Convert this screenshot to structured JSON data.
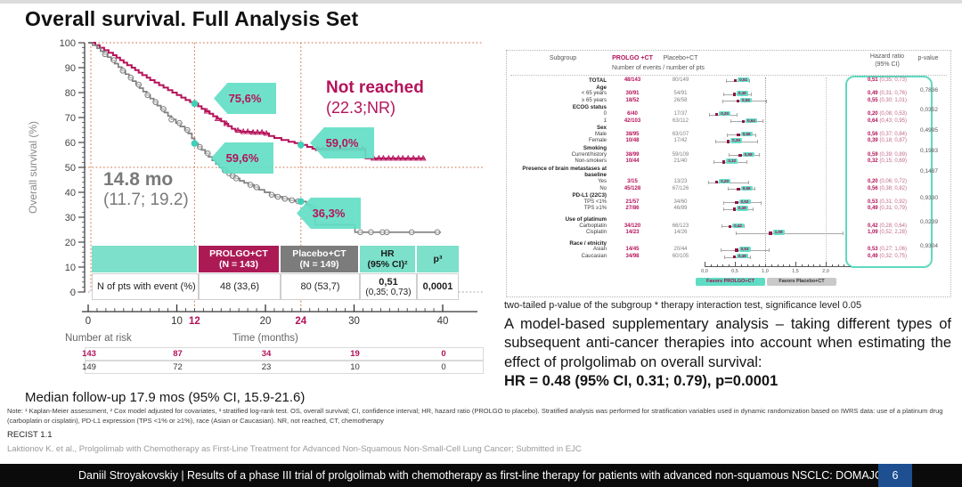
{
  "slide": {
    "title": "Overall survival. Full Analysis Set",
    "median_followup": "Median follow-up 17.9 mos (95% CI, 15.9-21.6)",
    "note": "Note: ¹ Kaplan-Meier assessment, ² Cox model adjusted for covariates, ³ stratified log-rank test. OS, overall survival; CI, confidence interval; HR, hazard ratio (PROLGO to placebo). Stratified analysis was performed for stratification variables used in dynamic randomization based on IWRS data: use of a platinum drug (carboplatin or cisplatin), PD-L1 expression (TPS <1% or ≥1%), race (Asian or Caucasian). NR, not reached, CT, chemotherapy",
    "recist": "RECIST 1.1",
    "source": "Laktionov K. et al., Prolgolimab with Chemotherapy as First-Line Treatment for Advanced Non-Squamous Non-Small-Cell Lung Cancer; Submitted in EJC",
    "footer": "Daniil Stroyakovskiy | Results of a phase III trial of prolgolimab with chemotherapy as first-line therapy for patients with advanced non-squamous NSCLC: DOMAJOR",
    "page_number": "6"
  },
  "km": {
    "ylabel": "Overall survival (%)",
    "xlabel": "Time (months)",
    "number_at_risk_label": "Number at risk",
    "annotations": {
      "prolgo_median": "Not reached",
      "prolgo_median_ci": "(22.3;NR)",
      "placebo_median": "14.8 mo",
      "placebo_median_ci": "(11.7; 19.2)",
      "flag_12_prolgo": "75,6%",
      "flag_12_placebo": "59,6%",
      "flag_24_prolgo": "59,0%",
      "flag_24_placebo": "36,3%"
    },
    "table": {
      "h0": "",
      "h1": "PROLGO+CT\n(N = 143)",
      "h2": "Placebo+CT\n(N = 149)",
      "h3": "HR\n(95% CI)²",
      "h4": "p³",
      "row_label": "N of pts with event (%)",
      "v1": "48 (33,6)",
      "v2": "80 (53,7)",
      "hr_value": "0,51",
      "hr_ci": "(0,35; 0,73)",
      "p": "0,0001"
    },
    "risk": {
      "prolgo": [
        "143",
        "87",
        "34",
        "19",
        "0"
      ],
      "placebo": [
        "149",
        "72",
        "23",
        "10",
        "0"
      ]
    }
  },
  "forest": {
    "headers": {
      "subgroup": "Subgroup",
      "prolgo": "PROLGO +CT",
      "placebo": "Placebo+CT",
      "events": "Number of events / number of pts",
      "hazard": "Hazard ratio\n(95% CI)",
      "pvalue": "p-value"
    },
    "legend_prolgo": "Favors PROLGO+CT",
    "legend_placebo": "Favors Placebo+CT",
    "footnote": "two-tailed p-value of the subgroup * therapy interaction test, significance level 0.05"
  },
  "analysis": {
    "text": "A model-based supplementary analysis – taking different types of subsequent anti-cancer therapies into account when estimating the effect of prolgolimab on overall survival:",
    "hr_line": "HR = 0.48 (95% CI, 0.31; 0.79), p=0.0001"
  },
  "theme": {
    "crimson": "#B5125A",
    "grey": "#7E7E7E",
    "teal": "#5FDCC3",
    "table_teal": "#7CE0CA",
    "ref_orange": "#CC6B3B",
    "footer_blue": "#1D4F91"
  },
  "chart_data": [
    {
      "type": "line",
      "title": "Kaplan-Meier overall survival, Full Analysis Set",
      "xlabel": "Time (months)",
      "ylabel": "Overall survival (%)",
      "xlim": [
        0,
        40
      ],
      "ylim": [
        0,
        100
      ],
      "xticks": [
        0,
        10,
        20,
        30,
        40
      ],
      "xticks_highlight": [
        12,
        24
      ],
      "ytick_step": 10,
      "risk_times": [
        0,
        10,
        20,
        30,
        40
      ],
      "series": [
        {
          "name": "PROLGO+CT",
          "color": "#B5125A",
          "marker": "triangle",
          "median_text": "Not reached (22.3;NR)",
          "points": [
            [
              0,
              100
            ],
            [
              0.8,
              99
            ],
            [
              1.3,
              98
            ],
            [
              1.8,
              97
            ],
            [
              2.3,
              96
            ],
            [
              2.8,
              95
            ],
            [
              3.2,
              94
            ],
            [
              3.6,
              93
            ],
            [
              4,
              92
            ],
            [
              4.4,
              91
            ],
            [
              4.9,
              90
            ],
            [
              5.3,
              89
            ],
            [
              5.7,
              88
            ],
            [
              6.1,
              87
            ],
            [
              6.6,
              86
            ],
            [
              7,
              85
            ],
            [
              7.5,
              84
            ],
            [
              8,
              83
            ],
            [
              8.5,
              82
            ],
            [
              9,
              81
            ],
            [
              9.5,
              80
            ],
            [
              10,
              79
            ],
            [
              10.5,
              78
            ],
            [
              11,
              77
            ],
            [
              11.5,
              76.2
            ],
            [
              12,
              75.6
            ],
            [
              12.4,
              74.5
            ],
            [
              12.8,
              73.5
            ],
            [
              13.2,
              72.5
            ],
            [
              13.7,
              71.5
            ],
            [
              14.1,
              70.5
            ],
            [
              14.5,
              69.5
            ],
            [
              15,
              68.5
            ],
            [
              15.4,
              67.5
            ],
            [
              15.8,
              66.5
            ],
            [
              16.2,
              65.5
            ],
            [
              16.6,
              64.8
            ],
            [
              17.2,
              64.3
            ],
            [
              18.5,
              64
            ],
            [
              19.8,
              63.6
            ],
            [
              20.4,
              62.6
            ],
            [
              21,
              61.8
            ],
            [
              21.8,
              61
            ],
            [
              22.6,
              60.3
            ],
            [
              23.3,
              59.7
            ],
            [
              24,
              59
            ],
            [
              24.7,
              58.2
            ],
            [
              25.3,
              57.5
            ],
            [
              31.3,
              53.6
            ],
            [
              38,
              53.6
            ]
          ],
          "censor_t": [
            13.4,
            14.6,
            15.6,
            16.9,
            17.5,
            18,
            18.6,
            19.1,
            19.6,
            20.1,
            25.9,
            26.5,
            27.2,
            27.8,
            28.4,
            29.1,
            29.7,
            30.4,
            31,
            32.2,
            32.8,
            33.3,
            33.9,
            34.4,
            35,
            35.5,
            36.1,
            36.7,
            37.3,
            37.8
          ]
        },
        {
          "name": "Placebo+CT",
          "color": "#7E7E7E",
          "marker": "circle",
          "median_text": "14.8 mo (11.7; 19.2)",
          "points": [
            [
              0,
              100
            ],
            [
              0.5,
              99
            ],
            [
              1,
              97.8
            ],
            [
              1.4,
              96.6
            ],
            [
              1.8,
              95.4
            ],
            [
              2.2,
              94.2
            ],
            [
              2.6,
              93
            ],
            [
              3,
              91.6
            ],
            [
              3.4,
              90.2
            ],
            [
              3.8,
              88.8
            ],
            [
              4.2,
              87.4
            ],
            [
              4.6,
              86
            ],
            [
              5,
              84.6
            ],
            [
              5.4,
              83.2
            ],
            [
              5.8,
              81.8
            ],
            [
              6.2,
              80.4
            ],
            [
              6.6,
              79
            ],
            [
              7,
              77.6
            ],
            [
              7.4,
              76.2
            ],
            [
              7.8,
              74.8
            ],
            [
              8.2,
              73.4
            ],
            [
              8.6,
              72
            ],
            [
              9,
              70.6
            ],
            [
              9.4,
              69.2
            ],
            [
              9.9,
              67.8
            ],
            [
              10.4,
              66.4
            ],
            [
              10.9,
              65
            ],
            [
              11.3,
              63.6
            ],
            [
              11.7,
              61.6
            ],
            [
              12,
              59.6
            ],
            [
              12.4,
              58.2
            ],
            [
              12.8,
              57
            ],
            [
              13.2,
              55.6
            ],
            [
              13.6,
              54.2
            ],
            [
              14,
              52.8
            ],
            [
              14.4,
              51.4
            ],
            [
              14.8,
              50
            ],
            [
              15.2,
              48.8
            ],
            [
              15.7,
              47.6
            ],
            [
              16.1,
              46.6
            ],
            [
              16.6,
              45.6
            ],
            [
              17.1,
              44.6
            ],
            [
              17.6,
              43.8
            ],
            [
              18.1,
              43
            ],
            [
              18.7,
              42
            ],
            [
              19.3,
              41
            ],
            [
              19.9,
              40
            ],
            [
              20.5,
              39
            ],
            [
              21.1,
              38.2
            ],
            [
              21.9,
              37.4
            ],
            [
              22.7,
              36.8
            ],
            [
              23.4,
              36.4
            ],
            [
              24,
              36.3
            ],
            [
              24.6,
              35
            ],
            [
              25.1,
              33.8
            ],
            [
              25.6,
              27
            ],
            [
              29.6,
              27
            ],
            [
              30.1,
              24
            ],
            [
              39.8,
              24
            ]
          ],
          "censor_t": [
            1.9,
            2.9,
            3.9,
            4.8,
            5.7,
            6.7,
            7.6,
            8.5,
            9.4,
            10.3,
            11.2,
            12.6,
            13.5,
            15.4,
            15.9,
            16.3,
            16.7,
            18.3,
            19,
            20.7,
            21.4,
            22.2,
            23,
            23.7,
            25.3,
            30.7,
            31.9,
            33.2,
            33.7,
            36.5,
            39.4
          ]
        }
      ],
      "milestones": [
        {
          "series": 0,
          "t": 12,
          "s": 75.6
        },
        {
          "series": 0,
          "t": 24,
          "s": 59.0
        },
        {
          "series": 1,
          "t": 12,
          "s": 59.6
        },
        {
          "series": 1,
          "t": 24,
          "s": 36.3
        }
      ]
    },
    {
      "type": "forest",
      "axis": {
        "min": 0,
        "max": 2.3,
        "ticks": [
          0,
          0.5,
          1,
          1.5,
          2
        ],
        "tick_labels": [
          "0,0",
          "0,5",
          "1,0",
          "1,5",
          "2,0"
        ],
        "ref": 1
      },
      "p_values": {
        "Age": "0,7836",
        "ECOG status": "0,0352",
        "Sex": "0,4995",
        "Smoking": "0,1983",
        "Presence of brain metastases at baseline": "0,1487",
        "PD-L1 (22C3)": "0,9330",
        "Use of platinum": "0,0239",
        "Race / etnicity": "0,9304"
      },
      "rows": [
        {
          "label": "TOTAL",
          "bold": true,
          "ev1": "48/143",
          "ev2": "80/149",
          "hr": 0.51,
          "lo": 0.35,
          "hi": 0.73
        },
        {
          "label": "Age",
          "bold": true,
          "p": "0,7836"
        },
        {
          "label": "< 65 years",
          "ev1": "30/91",
          "ev2": "54/91",
          "hr": 0.49,
          "lo": 0.31,
          "hi": 0.76
        },
        {
          "label": "≥ 65 years",
          "ev1": "18/52",
          "ev2": "26/58",
          "hr": 0.55,
          "lo": 0.3,
          "hi": 1.01
        },
        {
          "label": "ECOG status",
          "bold": true,
          "p": "0,0352"
        },
        {
          "label": "0",
          "ev1": "6/40",
          "ev2": "17/37",
          "hr": 0.2,
          "lo": 0.08,
          "hi": 0.53
        },
        {
          "label": "1",
          "ev1": "42/103",
          "ev2": "63/112",
          "hr": 0.64,
          "lo": 0.43,
          "hi": 0.95
        },
        {
          "label": "Sex",
          "bold": true,
          "p": "0,4995"
        },
        {
          "label": "Male",
          "ev1": "38/95",
          "ev2": "63/107",
          "hr": 0.56,
          "lo": 0.37,
          "hi": 0.84
        },
        {
          "label": "Female",
          "ev1": "10/48",
          "ev2": "17/42",
          "hr": 0.39,
          "lo": 0.18,
          "hi": 0.87
        },
        {
          "label": "Smoking",
          "bold": true,
          "p": "0,1983"
        },
        {
          "label": "Current/history",
          "ev1": "38/99",
          "ev2": "59/109",
          "hr": 0.59,
          "lo": 0.39,
          "hi": 0.89
        },
        {
          "label": "Non-smokers",
          "ev1": "10/44",
          "ev2": "21/40",
          "hr": 0.32,
          "lo": 0.15,
          "hi": 0.69
        },
        {
          "label": "Presence of brain metastases at",
          "bold": true,
          "p": "0,1487"
        },
        {
          "label": "baseline",
          "bold": true
        },
        {
          "label": "Yes",
          "ev1": "3/15",
          "ev2": "13/23",
          "hr": 0.2,
          "lo": 0.06,
          "hi": 0.72
        },
        {
          "label": "No",
          "ev1": "45/128",
          "ev2": "67/126",
          "hr": 0.56,
          "lo": 0.38,
          "hi": 0.82
        },
        {
          "label": "PD-L1 (22C3)",
          "bold": true,
          "p": "0,9330"
        },
        {
          "label": "TPS <1%",
          "ev1": "21/57",
          "ev2": "34/60",
          "hr": 0.53,
          "lo": 0.31,
          "hi": 0.92
        },
        {
          "label": "TPS ≥1%",
          "ev1": "27/86",
          "ev2": "46/89",
          "hr": 0.49,
          "lo": 0.31,
          "hi": 0.79
        },
        {
          "label": "Use of platinum",
          "bold": true,
          "space": true,
          "p": "0,0239"
        },
        {
          "label": "Carboplatin",
          "ev1": "34/120",
          "ev2": "66/123",
          "hr": 0.42,
          "lo": 0.28,
          "hi": 0.64
        },
        {
          "label": "Cisplatin",
          "ev1": "14/23",
          "ev2": "14/26",
          "hr": 1.09,
          "lo": 0.52,
          "hi": 2.28
        },
        {
          "label": "Race / etnicity",
          "bold": true,
          "space": true,
          "p": "0,9304"
        },
        {
          "label": "Asian",
          "ev1": "14/45",
          "ev2": "20/44",
          "hr": 0.53,
          "lo": 0.27,
          "hi": 1.06
        },
        {
          "label": "Caucasian",
          "ev1": "34/98",
          "ev2": "60/105",
          "hr": 0.49,
          "lo": 0.32,
          "hi": 0.75
        }
      ]
    }
  ]
}
